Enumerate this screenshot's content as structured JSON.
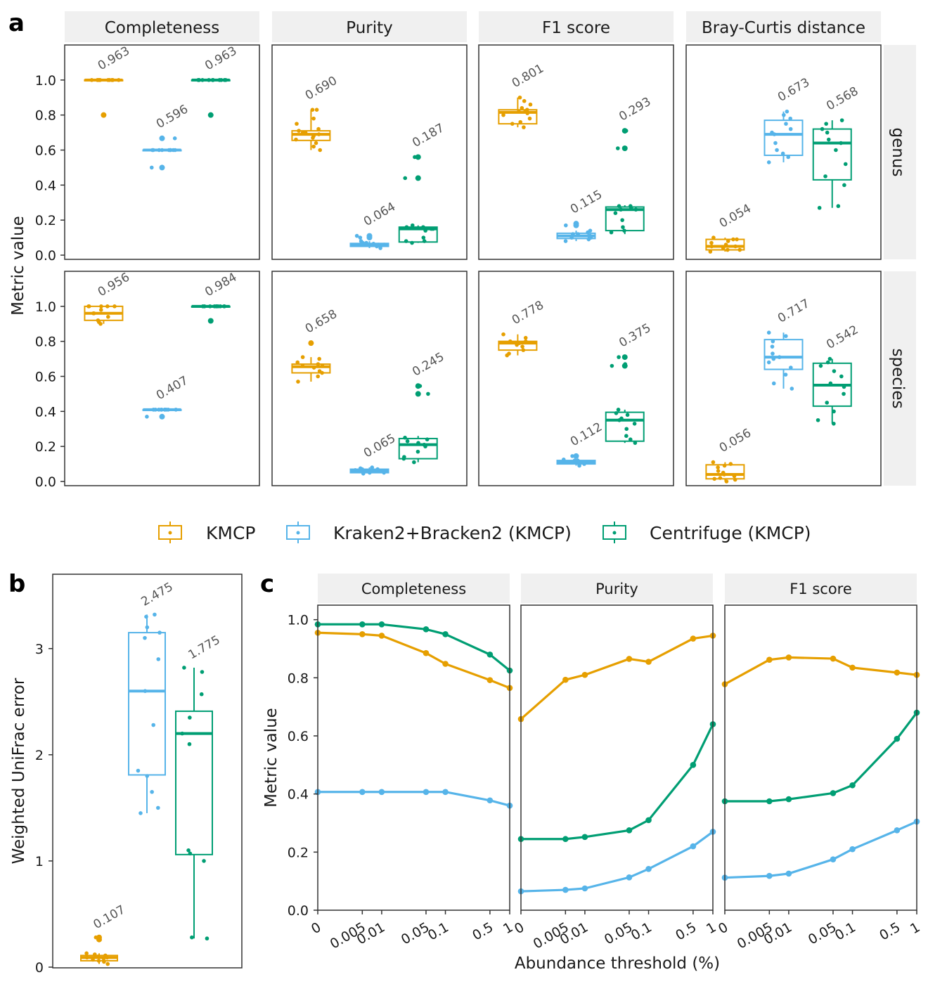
{
  "colors": {
    "KMCP": "#E69F00",
    "Kraken2+Bracken2 (KMCP)": "#56B4E9",
    "Centrifuge (KMCP)": "#009E73",
    "strip": "#f0f0f0",
    "frame": "#333333",
    "text": "#1a1a1a",
    "label": "#555555"
  },
  "panel_letters": {
    "a": "a",
    "b": "b",
    "c": "c"
  },
  "legend": {
    "entries": [
      "KMCP",
      "Kraken2+Bracken2 (KMCP)",
      "Centrifuge (KMCP)"
    ]
  },
  "chart_data": [
    {
      "panel": "a",
      "type": "box",
      "ylabel": "Metric value",
      "columns": [
        "Completeness",
        "Purity",
        "F1 score",
        "Bray-Curtis distance"
      ],
      "rows": [
        "genus",
        "species"
      ],
      "ylim": [
        0,
        1.2
      ],
      "yticks": [
        0.0,
        0.2,
        0.4,
        0.6,
        0.8,
        1.0
      ],
      "ytick_labels": [
        "0.0",
        "0.2",
        "0.4",
        "0.6",
        "0.8",
        "1.0"
      ],
      "methods": [
        "KMCP",
        "Kraken2+Bracken2 (KMCP)",
        "Centrifuge (KMCP)"
      ],
      "cells": [
        {
          "row": "genus",
          "col": "Completeness",
          "boxes": [
            {
              "q1": 1.0,
              "med": 1.0,
              "q3": 1.0,
              "wlo": 1.0,
              "whi": 1.0,
              "out": [
                0.8
              ],
              "pts": [
                1.0,
                1.0,
                1.0,
                1.0,
                1.0,
                1.0,
                1.0,
                1.0,
                1.0,
                1.0,
                1.0,
                1.0
              ],
              "label": "0.963"
            },
            {
              "q1": 0.6,
              "med": 0.6,
              "q3": 0.6,
              "wlo": 0.6,
              "whi": 0.6,
              "out": [
                0.667,
                0.5
              ],
              "pts": [
                0.6,
                0.6,
                0.6,
                0.6,
                0.6,
                0.6,
                0.6,
                0.6,
                0.6,
                0.667,
                0.5
              ],
              "label": "0.596"
            },
            {
              "q1": 1.0,
              "med": 1.0,
              "q3": 1.0,
              "wlo": 1.0,
              "whi": 1.0,
              "out": [
                0.8
              ],
              "pts": [
                1.0,
                1.0,
                1.0,
                1.0,
                1.0,
                1.0,
                1.0,
                1.0,
                1.0,
                1.0,
                1.0,
                1.0
              ],
              "label": "0.963"
            }
          ]
        },
        {
          "row": "genus",
          "col": "Purity",
          "boxes": [
            {
              "q1": 0.655,
              "med": 0.69,
              "q3": 0.71,
              "wlo": 0.6,
              "whi": 0.83,
              "out": [],
              "pts": [
                0.6,
                0.62,
                0.64,
                0.66,
                0.67,
                0.68,
                0.69,
                0.7,
                0.7,
                0.71,
                0.72,
                0.75,
                0.78,
                0.83,
                0.83
              ],
              "label": "0.690"
            },
            {
              "q1": 0.05,
              "med": 0.06,
              "q3": 0.067,
              "wlo": 0.04,
              "whi": 0.08,
              "out": [
                0.1,
                0.11
              ],
              "pts": [
                0.04,
                0.05,
                0.05,
                0.06,
                0.06,
                0.06,
                0.065,
                0.07,
                0.07,
                0.08,
                0.1,
                0.11
              ],
              "label": "0.064"
            },
            {
              "q1": 0.075,
              "med": 0.15,
              "q3": 0.16,
              "wlo": 0.07,
              "whi": 0.17,
              "out": [
                0.44,
                0.56
              ],
              "pts": [
                0.07,
                0.08,
                0.08,
                0.1,
                0.14,
                0.15,
                0.15,
                0.16,
                0.16,
                0.17,
                0.44,
                0.56
              ],
              "label": "0.187"
            }
          ]
        },
        {
          "row": "genus",
          "col": "F1 score",
          "boxes": [
            {
              "q1": 0.75,
              "med": 0.815,
              "q3": 0.83,
              "wlo": 0.73,
              "whi": 0.9,
              "out": [],
              "pts": [
                0.73,
                0.75,
                0.76,
                0.78,
                0.8,
                0.81,
                0.82,
                0.82,
                0.83,
                0.84,
                0.86,
                0.88,
                0.9
              ],
              "label": "0.801"
            },
            {
              "q1": 0.095,
              "med": 0.11,
              "q3": 0.125,
              "wlo": 0.08,
              "whi": 0.14,
              "out": [
                0.17,
                0.18
              ],
              "pts": [
                0.08,
                0.09,
                0.1,
                0.1,
                0.11,
                0.11,
                0.12,
                0.12,
                0.13,
                0.14,
                0.17,
                0.18
              ],
              "label": "0.115"
            },
            {
              "q1": 0.14,
              "med": 0.26,
              "q3": 0.275,
              "wlo": 0.12,
              "whi": 0.285,
              "out": [
                0.61,
                0.71
              ],
              "pts": [
                0.13,
                0.14,
                0.16,
                0.2,
                0.24,
                0.26,
                0.26,
                0.27,
                0.28,
                0.28,
                0.61,
                0.71
              ],
              "label": "0.293"
            }
          ]
        },
        {
          "row": "genus",
          "col": "Bray-Curtis distance",
          "boxes": [
            {
              "q1": 0.03,
              "med": 0.05,
              "q3": 0.09,
              "wlo": 0.02,
              "whi": 0.1,
              "out": [],
              "pts": [
                0.02,
                0.03,
                0.03,
                0.04,
                0.05,
                0.05,
                0.06,
                0.07,
                0.08,
                0.09,
                0.09,
                0.1
              ],
              "label": "0.054"
            },
            {
              "q1": 0.57,
              "med": 0.69,
              "q3": 0.77,
              "wlo": 0.53,
              "whi": 0.82,
              "out": [],
              "pts": [
                0.53,
                0.56,
                0.58,
                0.6,
                0.64,
                0.69,
                0.7,
                0.72,
                0.75,
                0.78,
                0.8,
                0.82
              ],
              "label": "0.673"
            },
            {
              "q1": 0.43,
              "med": 0.64,
              "q3": 0.72,
              "wlo": 0.27,
              "whi": 0.77,
              "out": [],
              "pts": [
                0.27,
                0.28,
                0.4,
                0.45,
                0.52,
                0.6,
                0.64,
                0.66,
                0.7,
                0.72,
                0.75,
                0.77
              ],
              "label": "0.568"
            }
          ]
        },
        {
          "row": "species",
          "col": "Completeness",
          "boxes": [
            {
              "q1": 0.92,
              "med": 0.96,
              "q3": 1.0,
              "wlo": 0.9,
              "whi": 1.0,
              "out": [],
              "pts": [
                0.9,
                0.91,
                0.92,
                0.94,
                0.96,
                0.96,
                0.98,
                1.0,
                1.0,
                1.0,
                1.0,
                1.0
              ],
              "label": "0.956"
            },
            {
              "q1": 0.41,
              "med": 0.41,
              "q3": 0.41,
              "wlo": 0.41,
              "whi": 0.41,
              "out": [
                0.37
              ],
              "pts": [
                0.41,
                0.41,
                0.41,
                0.41,
                0.41,
                0.41,
                0.41,
                0.41,
                0.41,
                0.41,
                0.37
              ],
              "label": "0.407"
            },
            {
              "q1": 1.0,
              "med": 1.0,
              "q3": 1.0,
              "wlo": 1.0,
              "whi": 1.0,
              "out": [
                0.917
              ],
              "pts": [
                1.0,
                1.0,
                1.0,
                1.0,
                1.0,
                1.0,
                1.0,
                1.0,
                1.0,
                1.0,
                0.917
              ],
              "label": "0.984"
            }
          ]
        },
        {
          "row": "species",
          "col": "Purity",
          "boxes": [
            {
              "q1": 0.62,
              "med": 0.655,
              "q3": 0.67,
              "wlo": 0.57,
              "whi": 0.71,
              "out": [
                0.79
              ],
              "pts": [
                0.57,
                0.6,
                0.62,
                0.63,
                0.65,
                0.66,
                0.66,
                0.67,
                0.68,
                0.7,
                0.71,
                0.79
              ],
              "label": "0.658"
            },
            {
              "q1": 0.05,
              "med": 0.06,
              "q3": 0.07,
              "wlo": 0.045,
              "whi": 0.08,
              "out": [],
              "pts": [
                0.045,
                0.05,
                0.05,
                0.06,
                0.06,
                0.06,
                0.065,
                0.07,
                0.07,
                0.075,
                0.08
              ],
              "label": "0.065"
            },
            {
              "q1": 0.13,
              "med": 0.21,
              "q3": 0.245,
              "wlo": 0.11,
              "whi": 0.26,
              "out": [
                0.5,
                0.545
              ],
              "pts": [
                0.11,
                0.13,
                0.14,
                0.17,
                0.2,
                0.21,
                0.22,
                0.23,
                0.24,
                0.25,
                0.5,
                0.545
              ],
              "label": "0.245"
            }
          ]
        },
        {
          "row": "species",
          "col": "F1 score",
          "boxes": [
            {
              "q1": 0.75,
              "med": 0.79,
              "q3": 0.8,
              "wlo": 0.72,
              "whi": 0.84,
              "out": [],
              "pts": [
                0.72,
                0.73,
                0.75,
                0.77,
                0.78,
                0.79,
                0.79,
                0.8,
                0.8,
                0.82,
                0.84
              ],
              "label": "0.778"
            },
            {
              "q1": 0.1,
              "med": 0.11,
              "q3": 0.12,
              "wlo": 0.09,
              "whi": 0.125,
              "out": [
                0.145
              ],
              "pts": [
                0.09,
                0.1,
                0.1,
                0.11,
                0.11,
                0.11,
                0.12,
                0.12,
                0.125,
                0.145
              ],
              "label": "0.112"
            },
            {
              "q1": 0.23,
              "med": 0.35,
              "q3": 0.395,
              "wlo": 0.22,
              "whi": 0.41,
              "out": [
                0.66,
                0.71
              ],
              "pts": [
                0.22,
                0.24,
                0.26,
                0.3,
                0.33,
                0.35,
                0.36,
                0.38,
                0.39,
                0.41,
                0.66,
                0.67,
                0.71
              ],
              "label": "0.375"
            }
          ]
        },
        {
          "row": "species",
          "col": "Bray-Curtis distance",
          "boxes": [
            {
              "q1": 0.015,
              "med": 0.04,
              "q3": 0.095,
              "wlo": 0.0,
              "whi": 0.11,
              "out": [],
              "pts": [
                0.0,
                0.01,
                0.015,
                0.02,
                0.03,
                0.04,
                0.05,
                0.06,
                0.08,
                0.09,
                0.1,
                0.11
              ],
              "label": "0.056"
            },
            {
              "q1": 0.64,
              "med": 0.71,
              "q3": 0.81,
              "wlo": 0.53,
              "whi": 0.85,
              "out": [],
              "pts": [
                0.53,
                0.56,
                0.61,
                0.65,
                0.68,
                0.7,
                0.71,
                0.73,
                0.77,
                0.8,
                0.83,
                0.85
              ],
              "label": "0.717"
            },
            {
              "q1": 0.43,
              "med": 0.55,
              "q3": 0.675,
              "wlo": 0.33,
              "whi": 0.7,
              "out": [],
              "pts": [
                0.33,
                0.35,
                0.4,
                0.45,
                0.5,
                0.54,
                0.56,
                0.6,
                0.63,
                0.66,
                0.68,
                0.7
              ],
              "label": "0.542"
            }
          ]
        }
      ]
    },
    {
      "panel": "b",
      "type": "box",
      "ylabel": "Weighted UniFrac error",
      "ylim": [
        0,
        3.7
      ],
      "yticks": [
        0,
        1,
        2,
        3
      ],
      "ytick_labels": [
        "0",
        "1",
        "2",
        "3"
      ],
      "methods": [
        "KMCP",
        "Kraken2+Bracken2 (KMCP)",
        "Centrifuge (KMCP)"
      ],
      "boxes": [
        {
          "q1": 0.06,
          "med": 0.09,
          "q3": 0.11,
          "wlo": 0.03,
          "whi": 0.13,
          "out": [
            0.26,
            0.28
          ],
          "pts": [
            0.03,
            0.05,
            0.06,
            0.07,
            0.08,
            0.09,
            0.09,
            0.1,
            0.11,
            0.12,
            0.13,
            0.26,
            0.28
          ],
          "label": "0.107"
        },
        {
          "q1": 1.81,
          "med": 2.6,
          "q3": 3.15,
          "wlo": 1.45,
          "whi": 3.32,
          "out": [],
          "pts": [
            1.45,
            1.5,
            1.65,
            1.8,
            1.85,
            2.28,
            2.6,
            2.9,
            3.1,
            3.15,
            3.2,
            3.3,
            3.32
          ],
          "label": "2.475"
        },
        {
          "q1": 1.06,
          "med": 2.2,
          "q3": 2.41,
          "wlo": 0.27,
          "whi": 2.82,
          "out": [],
          "pts": [
            0.27,
            0.28,
            1.0,
            1.07,
            1.1,
            2.1,
            2.2,
            2.35,
            2.57,
            2.78,
            2.82
          ],
          "label": "1.775"
        }
      ]
    },
    {
      "panel": "c",
      "type": "line",
      "xlabel": "Abundance threshold (%)",
      "ylabel": "Metric value",
      "facets": [
        "Completeness",
        "Purity",
        "F1 score"
      ],
      "x": [
        "0",
        "0.005",
        "0.01",
        "0.05",
        "0.1",
        "0.5",
        "1"
      ],
      "ylim": [
        0,
        1.05
      ],
      "yticks": [
        0.0,
        0.2,
        0.4,
        0.6,
        0.8,
        1.0
      ],
      "ytick_labels": [
        "0.0",
        "0.2",
        "0.4",
        "0.6",
        "0.8",
        "1.0"
      ],
      "series": [
        {
          "name": "KMCP",
          "facet": "Completeness",
          "values": [
            0.955,
            0.95,
            0.945,
            0.885,
            0.848,
            0.792,
            0.765
          ]
        },
        {
          "name": "Kraken2+Bracken2 (KMCP)",
          "facet": "Completeness",
          "values": [
            0.407,
            0.407,
            0.407,
            0.407,
            0.407,
            0.378,
            0.36
          ]
        },
        {
          "name": "Centrifuge (KMCP)",
          "facet": "Completeness",
          "values": [
            0.984,
            0.984,
            0.984,
            0.967,
            0.95,
            0.88,
            0.825
          ]
        },
        {
          "name": "KMCP",
          "facet": "Purity",
          "values": [
            0.658,
            0.793,
            0.81,
            0.865,
            0.855,
            0.935,
            0.945
          ]
        },
        {
          "name": "Kraken2+Bracken2 (KMCP)",
          "facet": "Purity",
          "values": [
            0.065,
            0.07,
            0.075,
            0.113,
            0.142,
            0.22,
            0.27
          ]
        },
        {
          "name": "Centrifuge (KMCP)",
          "facet": "Purity",
          "values": [
            0.245,
            0.245,
            0.252,
            0.275,
            0.31,
            0.5,
            0.64
          ]
        },
        {
          "name": "KMCP",
          "facet": "F1 score",
          "values": [
            0.778,
            0.862,
            0.87,
            0.866,
            0.835,
            0.818,
            0.81
          ]
        },
        {
          "name": "Kraken2+Bracken2 (KMCP)",
          "facet": "F1 score",
          "values": [
            0.112,
            0.118,
            0.126,
            0.175,
            0.21,
            0.275,
            0.305
          ]
        },
        {
          "name": "Centrifuge (KMCP)",
          "facet": "F1 score",
          "values": [
            0.375,
            0.375,
            0.382,
            0.403,
            0.43,
            0.59,
            0.68
          ]
        }
      ]
    }
  ]
}
